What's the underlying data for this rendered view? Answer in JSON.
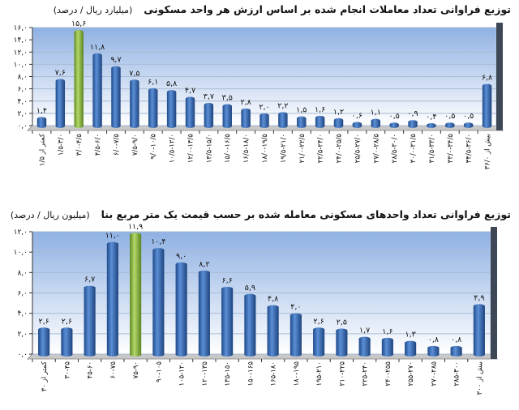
{
  "chart_data": [
    {
      "type": "bar",
      "title": "توزیع فراوانی تعداد معاملات انجام شده بر اساس ارزش هر واحد مسکونی",
      "unit": "(میلیارد ریال / درصد)",
      "ylim": [
        0,
        16
      ],
      "yticks": [
        "۰,۰",
        "۲,۰",
        "۴,۰",
        "۶,۰",
        "۸,۰",
        "۱۰,۰",
        "۱۲,۰",
        "۱۴,۰",
        "۱۶,۰"
      ],
      "highlight_index": 2,
      "grid": true,
      "categories": [
        "کمتر از ۱/۵",
        "۱/۵-۳/۰",
        "۳/۰-۴/۵",
        "۴/۵-۶/۰",
        "۶/۰-۷/۵",
        "۷/۵-۹/۰",
        "۹/۰-۱۰/۵",
        "۱۰/۵-۱۲/۰",
        "۱۲/۰-۱۳/۵",
        "۱۳/۵-۱۵/۰",
        "۱۵/۰-۱۶/۵",
        "۱۶/۵-۱۸/۰",
        "۱۸/۰-۱۹/۵",
        "۱۹/۵-۲۱/۰",
        "۲۱/۰-۲۲/۵",
        "۲۲/۵-۲۴/۰",
        "۲۴/۰-۲۵/۵",
        "۲۵/۵-۲۷/۰",
        "۲۷/۰-۲۸/۵",
        "۲۸/۵-۳۰/۰",
        "۳۰/۰-۳۱/۵",
        "۳۱/۵-۳۳/۰",
        "۳۳/۰-۳۴/۵",
        "۳۴/۵-۳۶/۰",
        "بیش از ۳۶/۰"
      ],
      "values": [
        1.4,
        7.6,
        15.6,
        11.8,
        9.7,
        7.5,
        6.1,
        5.8,
        4.7,
        3.7,
        3.5,
        2.8,
        2.0,
        2.2,
        1.5,
        1.6,
        1.2,
        0.6,
        1.1,
        0.5,
        0.9,
        0.4,
        0.5,
        0.5,
        6.8
      ],
      "value_labels": [
        "۱,۴",
        "۷,۶",
        "۱۵,۶",
        "۱۱,۸",
        "۹,۷",
        "۷,۵",
        "۶,۱",
        "۵,۸",
        "۴,۷",
        "۳,۷",
        "۳,۵",
        "۲,۸",
        "۲,۰",
        "۲,۲",
        "۱,۵",
        "۱,۶",
        "۱,۲",
        "۰,۶",
        "۱,۱",
        "۰,۵",
        "۰,۹",
        "۰,۴",
        "۰,۵",
        "۰,۵",
        "۶,۸"
      ]
    },
    {
      "type": "bar",
      "title": "توزیع فراوانی تعداد واحدهای مسکونی معامله شده بر حسب قیمت یک متر مربع بنا",
      "unit": "(میلیون ریال / درصد)",
      "ylim": [
        0,
        12
      ],
      "yticks": [
        "۰,۰",
        "۲,۰",
        "۴,۰",
        "۶,۰",
        "۸,۰",
        "۱۰,۰",
        "۱۲,۰"
      ],
      "highlight_index": 4,
      "grid": true,
      "categories": [
        "کمتر از ۳۰",
        "۳۰-۴۵",
        "۴۵-۶۰",
        "۶۰-۷۵",
        "۷۵-۹۰",
        "۹۰-۱۰۵",
        "۱۰۵-۱۲۰",
        "۱۲۰-۱۳۵",
        "۱۳۵-۱۵۰",
        "۱۵۰-۱۶۵",
        "۱۶۵-۱۸۰",
        "۱۸۰-۱۹۵",
        "۱۹۵-۲۱۰",
        "۲۱۰-۲۲۵",
        "۲۲۵-۲۴۰",
        "۲۴۰-۲۵۵",
        "۲۵۵-۲۷۰",
        "۲۷۰-۲۸۵",
        "۲۸۵-۳۰۰",
        "بیش از ۳۰۰"
      ],
      "values": [
        2.6,
        2.6,
        6.7,
        11.0,
        11.9,
        10.4,
        9.0,
        8.2,
        6.6,
        5.9,
        4.8,
        4.0,
        2.6,
        2.5,
        1.7,
        1.6,
        1.3,
        0.8,
        0.8,
        4.9
      ],
      "value_labels": [
        "۲,۶",
        "۲,۶",
        "۶,۷",
        "۱۱,۰",
        "۱۱,۹",
        "۱۰,۴",
        "۹,۰",
        "۸,۲",
        "۶,۶",
        "۵,۹",
        "۴,۸",
        "۴,۰",
        "۲,۶",
        "۲,۵",
        "۱,۷",
        "۱,۶",
        "۱,۳",
        "۰,۸",
        "۰,۸",
        "۴,۹"
      ]
    }
  ],
  "colors": {
    "bar": "#3a6db5",
    "highlight": "#8ab640",
    "plot_top": "#9dbbe6",
    "plot_bottom": "#ffffff"
  }
}
